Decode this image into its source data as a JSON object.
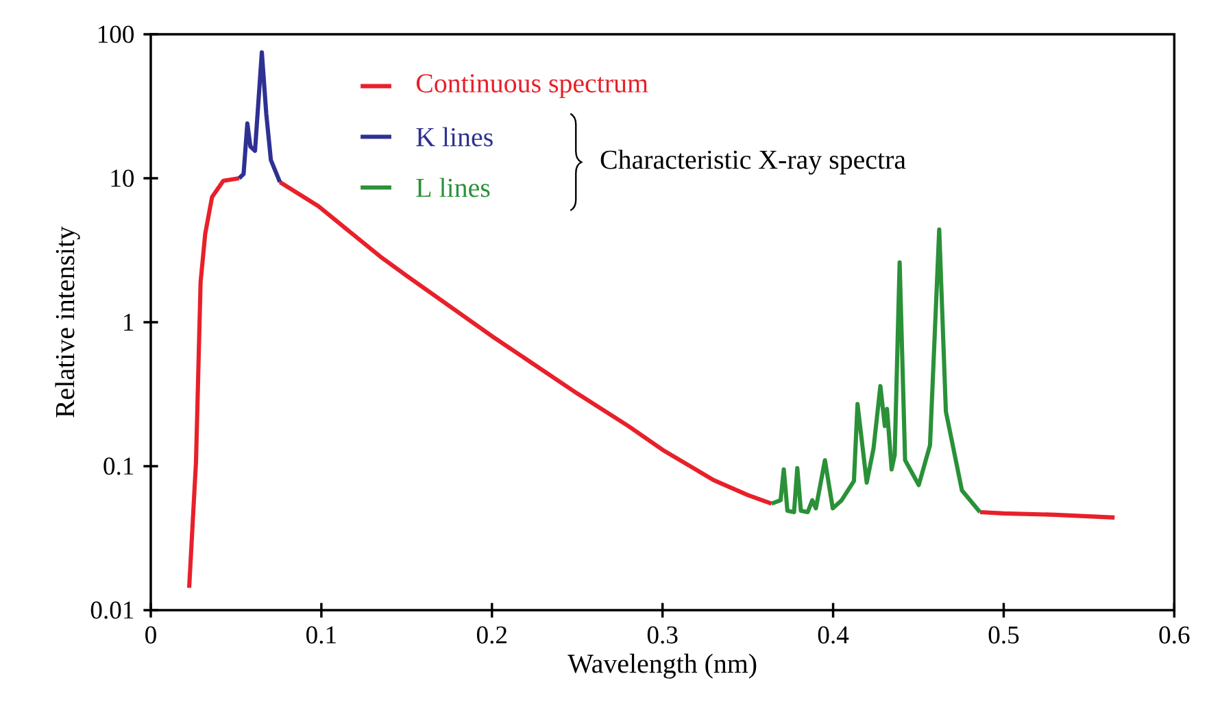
{
  "chart_data": {
    "type": "line",
    "xlabel": "Wavelength (nm)",
    "ylabel": "Relative intensity",
    "log": "y",
    "xlim": [
      0,
      0.6
    ],
    "xticks": [
      0,
      0.1,
      0.2,
      0.3,
      0.4,
      0.5,
      0.6
    ],
    "ylim": [
      0.01,
      100
    ],
    "yticks": [
      0.01,
      0.1,
      1,
      10,
      100
    ],
    "grid": false,
    "legend": "top",
    "marker": "none",
    "line_style": "solid",
    "annotations": [
      "Characteristic X-ray spectra"
    ],
    "series": [
      {
        "name": "Continuous spectrum",
        "color": "#e8202a",
        "x": [
          0.0225,
          0.0265,
          0.0292,
          0.0319,
          0.0359,
          0.0425,
          0.0518,
          0.06,
          0.0757,
          0.0982,
          0.1355,
          0.15,
          0.2,
          0.25,
          0.28,
          0.3,
          0.33,
          0.35,
          0.3639,
          0.42,
          0.4861,
          0.5,
          0.53,
          0.565
        ],
        "values": [
          0.0143,
          0.107,
          1.9,
          4.1,
          7.4,
          9.6,
          10.0,
          null,
          9.4,
          6.4,
          2.8,
          2.1,
          0.8,
          0.32,
          0.19,
          0.13,
          0.08,
          0.063,
          0.055,
          null,
          0.048,
          0.047,
          0.046,
          0.044
        ]
      },
      {
        "name": "K lines",
        "color": "#2e3192",
        "x": [
          0.0518,
          0.0544,
          0.0566,
          0.0584,
          0.0611,
          0.0651,
          0.0677,
          0.0704,
          0.0757
        ],
        "values": [
          10.0,
          10.7,
          24,
          16.6,
          15.5,
          75,
          28,
          13.4,
          9.4
        ]
      },
      {
        "name": "L lines",
        "color": "#2a9138",
        "x": [
          0.3639,
          0.3692,
          0.3711,
          0.3732,
          0.3771,
          0.379,
          0.3811,
          0.3851,
          0.3878,
          0.3899,
          0.3952,
          0.3998,
          0.405,
          0.4122,
          0.4143,
          0.4197,
          0.4237,
          0.4277,
          0.4303,
          0.4316,
          0.4343,
          0.4361,
          0.439,
          0.4422,
          0.4502,
          0.4568,
          0.4622,
          0.4661,
          0.4755,
          0.4861
        ],
        "values": [
          0.055,
          0.058,
          0.095,
          0.049,
          0.048,
          0.097,
          0.049,
          0.048,
          0.058,
          0.051,
          0.11,
          0.051,
          0.058,
          0.079,
          0.27,
          0.077,
          0.133,
          0.36,
          0.19,
          0.25,
          0.095,
          0.12,
          2.6,
          0.11,
          0.074,
          0.14,
          4.4,
          0.24,
          0.068,
          0.048
        ]
      }
    ]
  }
}
